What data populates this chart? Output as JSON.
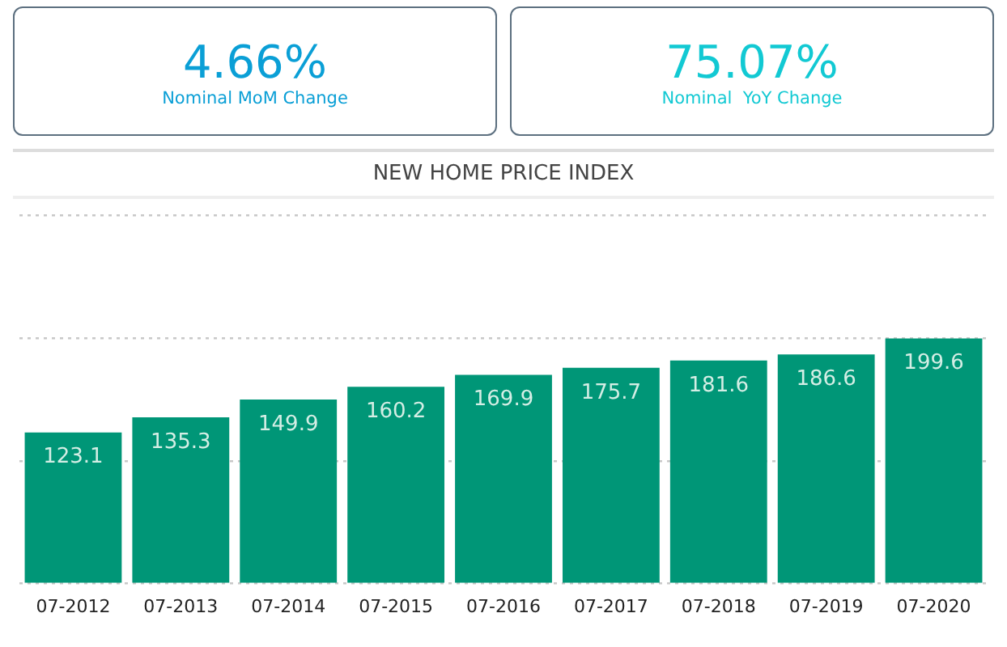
{
  "chart_data": [
    {
      "type": "other",
      "title": "4.66%",
      "subtitle": "Nominal MoM Change",
      "color": "#0a9fd6"
    },
    {
      "type": "other",
      "title": "75.07%",
      "subtitle": "Nominal  YoY Change",
      "color": "#12c9d3"
    },
    {
      "type": "bar",
      "title": "NEW HOME PRICE INDEX",
      "categories": [
        "07-2012",
        "07-2013",
        "07-2014",
        "07-2015",
        "07-2016",
        "07-2017",
        "07-2018",
        "07-2019",
        "07-2020"
      ],
      "values": [
        123.1,
        135.3,
        149.9,
        160.2,
        169.9,
        175.7,
        181.6,
        186.6,
        199.6
      ],
      "color": "#009677",
      "ylim": [
        0,
        300
      ],
      "yticks": [
        {
          "value": 0,
          "label": null
        },
        {
          "value": 100,
          "label": null
        },
        {
          "value": 200,
          "label": null
        },
        {
          "value": 300,
          "label": null
        }
      ],
      "grid": "y",
      "tick_labels": "x",
      "data_labels": true
    }
  ]
}
